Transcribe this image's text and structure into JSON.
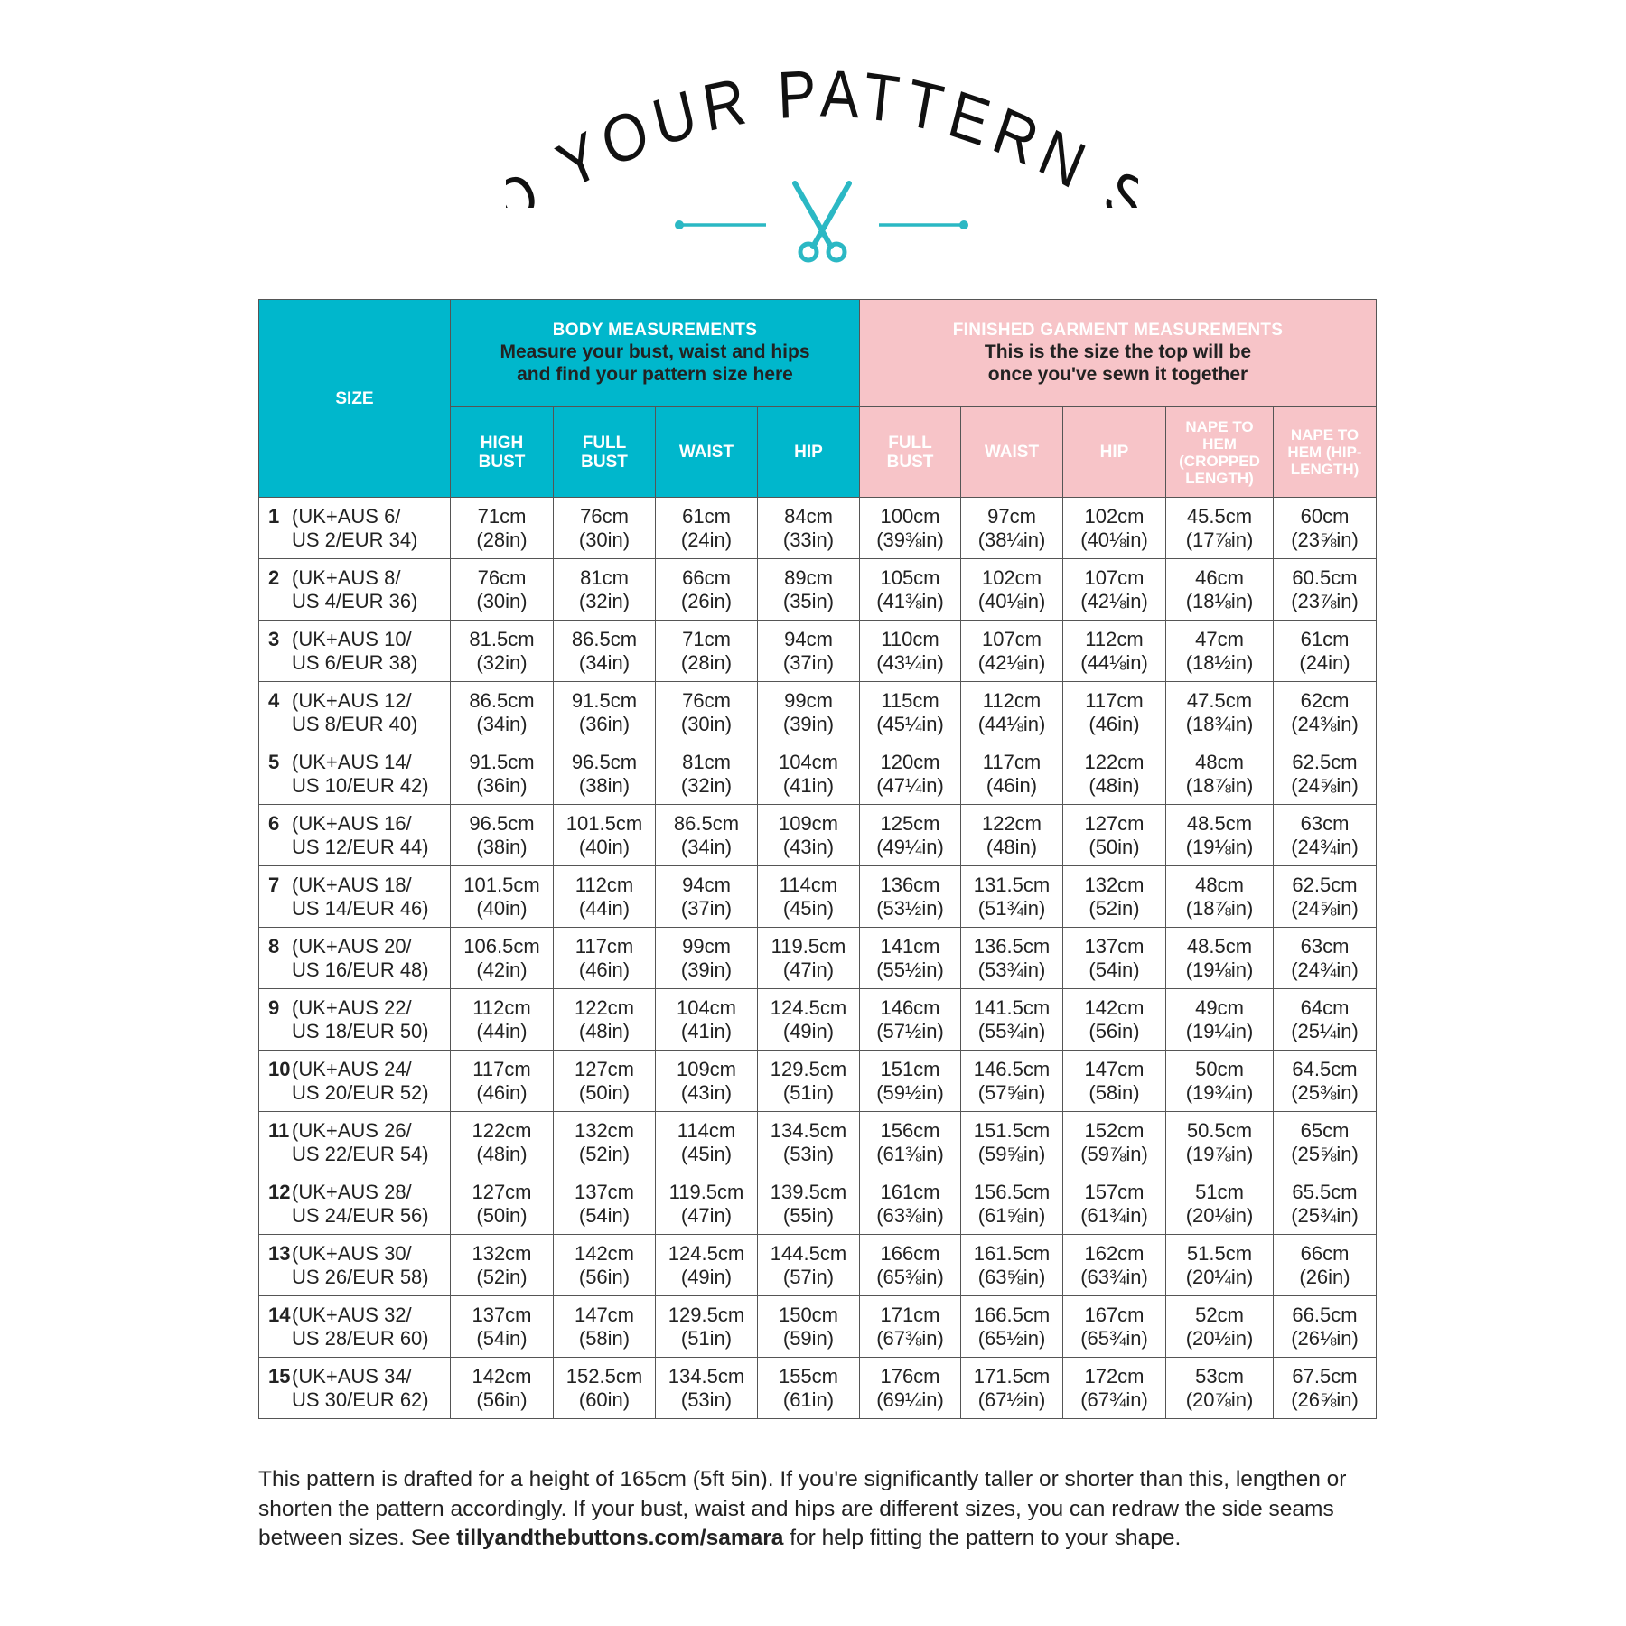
{
  "title": "FIND YOUR PATTERN SIZE",
  "colors": {
    "teal": "#00b7cc",
    "pink": "#f7c4c8",
    "scissors": "#2bb8c4"
  },
  "icons": {
    "scissors": "scissors-icon"
  },
  "header": {
    "size_label": "SIZE",
    "body": {
      "title": "BODY MEASUREMENTS",
      "subtitle": "Measure your bust, waist and hips and find your pattern size here",
      "columns": [
        "HIGH BUST",
        "FULL BUST",
        "WAIST",
        "HIP"
      ]
    },
    "finished": {
      "title": "FINISHED GARMENT MEASUREMENTS",
      "subtitle": "This is the size the top will be once you've sewn it together",
      "columns": [
        "FULL BUST",
        "WAIST",
        "HIP",
        "NAPE TO HEM (CROPPED LENGTH)",
        "NAPE TO HEM (HIP-LENGTH)"
      ]
    }
  },
  "rows": [
    {
      "num": "1",
      "line1": "(UK+AUS 6/",
      "line2": "US 2/EUR 34)",
      "cells": [
        [
          "71cm",
          "(28in)"
        ],
        [
          "76cm",
          "(30in)"
        ],
        [
          "61cm",
          "(24in)"
        ],
        [
          "84cm",
          "(33in)"
        ],
        [
          "100cm",
          "(39⅜in)"
        ],
        [
          "97cm",
          "(38¼in)"
        ],
        [
          "102cm",
          "(40⅛in)"
        ],
        [
          "45.5cm",
          "(17⅞in)"
        ],
        [
          "60cm",
          "(23⅝in)"
        ]
      ]
    },
    {
      "num": "2",
      "line1": "(UK+AUS 8/",
      "line2": "US 4/EUR 36)",
      "cells": [
        [
          "76cm",
          "(30in)"
        ],
        [
          "81cm",
          "(32in)"
        ],
        [
          "66cm",
          "(26in)"
        ],
        [
          "89cm",
          "(35in)"
        ],
        [
          "105cm",
          "(41⅜in)"
        ],
        [
          "102cm",
          "(40⅛in)"
        ],
        [
          "107cm",
          "(42⅛in)"
        ],
        [
          "46cm",
          "(18⅛in)"
        ],
        [
          "60.5cm",
          "(23⅞in)"
        ]
      ]
    },
    {
      "num": "3",
      "line1": "(UK+AUS 10/",
      "line2": "US 6/EUR 38)",
      "cells": [
        [
          "81.5cm",
          "(32in)"
        ],
        [
          "86.5cm",
          "(34in)"
        ],
        [
          "71cm",
          "(28in)"
        ],
        [
          "94cm",
          "(37in)"
        ],
        [
          "110cm",
          "(43¼in)"
        ],
        [
          "107cm",
          "(42⅛in)"
        ],
        [
          "112cm",
          "(44⅛in)"
        ],
        [
          "47cm",
          "(18½in)"
        ],
        [
          "61cm",
          "(24in)"
        ]
      ]
    },
    {
      "num": "4",
      "line1": "(UK+AUS 12/",
      "line2": "US 8/EUR 40)",
      "cells": [
        [
          "86.5cm",
          "(34in)"
        ],
        [
          "91.5cm",
          "(36in)"
        ],
        [
          "76cm",
          "(30in)"
        ],
        [
          "99cm",
          "(39in)"
        ],
        [
          "115cm",
          "(45¼in)"
        ],
        [
          "112cm",
          "(44⅛in)"
        ],
        [
          "117cm",
          "(46in)"
        ],
        [
          "47.5cm",
          "(18¾in)"
        ],
        [
          "62cm",
          "(24⅜in)"
        ]
      ]
    },
    {
      "num": "5",
      "line1": "(UK+AUS 14/",
      "line2": "US 10/EUR 42)",
      "cells": [
        [
          "91.5cm",
          "(36in)"
        ],
        [
          "96.5cm",
          "(38in)"
        ],
        [
          "81cm",
          "(32in)"
        ],
        [
          "104cm",
          "(41in)"
        ],
        [
          "120cm",
          "(47¼in)"
        ],
        [
          "117cm",
          "(46in)"
        ],
        [
          "122cm",
          "(48in)"
        ],
        [
          "48cm",
          "(18⅞in)"
        ],
        [
          "62.5cm",
          "(24⅝in)"
        ]
      ]
    },
    {
      "num": "6",
      "line1": "(UK+AUS 16/",
      "line2": "US 12/EUR 44)",
      "cells": [
        [
          "96.5cm",
          "(38in)"
        ],
        [
          "101.5cm",
          "(40in)"
        ],
        [
          "86.5cm",
          "(34in)"
        ],
        [
          "109cm",
          "(43in)"
        ],
        [
          "125cm",
          "(49¼in)"
        ],
        [
          "122cm",
          "(48in)"
        ],
        [
          "127cm",
          "(50in)"
        ],
        [
          "48.5cm",
          "(19⅛in)"
        ],
        [
          "63cm",
          "(24¾in)"
        ]
      ]
    },
    {
      "num": "7",
      "line1": "(UK+AUS 18/",
      "line2": "US 14/EUR 46)",
      "cells": [
        [
          "101.5cm",
          "(40in)"
        ],
        [
          "112cm",
          "(44in)"
        ],
        [
          "94cm",
          "(37in)"
        ],
        [
          "114cm",
          "(45in)"
        ],
        [
          "136cm",
          "(53½in)"
        ],
        [
          "131.5cm",
          "(51¾in)"
        ],
        [
          "132cm",
          "(52in)"
        ],
        [
          "48cm",
          "(18⅞in)"
        ],
        [
          "62.5cm",
          "(24⅝in)"
        ]
      ]
    },
    {
      "num": "8",
      "line1": "(UK+AUS 20/",
      "line2": "US 16/EUR 48)",
      "cells": [
        [
          "106.5cm",
          "(42in)"
        ],
        [
          "117cm",
          "(46in)"
        ],
        [
          "99cm",
          "(39in)"
        ],
        [
          "119.5cm",
          "(47in)"
        ],
        [
          "141cm",
          "(55½in)"
        ],
        [
          "136.5cm",
          "(53¾in)"
        ],
        [
          "137cm",
          "(54in)"
        ],
        [
          "48.5cm",
          "(19⅛in)"
        ],
        [
          "63cm",
          "(24¾in)"
        ]
      ]
    },
    {
      "num": "9",
      "line1": "(UK+AUS 22/",
      "line2": "US 18/EUR 50)",
      "cells": [
        [
          "112cm",
          "(44in)"
        ],
        [
          "122cm",
          "(48in)"
        ],
        [
          "104cm",
          "(41in)"
        ],
        [
          "124.5cm",
          "(49in)"
        ],
        [
          "146cm",
          "(57½in)"
        ],
        [
          "141.5cm",
          "(55¾in)"
        ],
        [
          "142cm",
          "(56in)"
        ],
        [
          "49cm",
          "(19¼in)"
        ],
        [
          "64cm",
          "(25¼in)"
        ]
      ]
    },
    {
      "num": "10",
      "line1": "(UK+AUS 24/",
      "line2": "US 20/EUR 52)",
      "cells": [
        [
          "117cm",
          "(46in)"
        ],
        [
          "127cm",
          "(50in)"
        ],
        [
          "109cm",
          "(43in)"
        ],
        [
          "129.5cm",
          "(51in)"
        ],
        [
          "151cm",
          "(59½in)"
        ],
        [
          "146.5cm",
          "(57⅝in)"
        ],
        [
          "147cm",
          "(58in)"
        ],
        [
          "50cm",
          "(19¾in)"
        ],
        [
          "64.5cm",
          "(25⅜in)"
        ]
      ]
    },
    {
      "num": "11",
      "line1": "(UK+AUS 26/",
      "line2": "US 22/EUR 54)",
      "cells": [
        [
          "122cm",
          "(48in)"
        ],
        [
          "132cm",
          "(52in)"
        ],
        [
          "114cm",
          "(45in)"
        ],
        [
          "134.5cm",
          "(53in)"
        ],
        [
          "156cm",
          "(61⅜in)"
        ],
        [
          "151.5cm",
          "(59⅝in)"
        ],
        [
          "152cm",
          "(59⅞in)"
        ],
        [
          "50.5cm",
          "(19⅞in)"
        ],
        [
          "65cm",
          "(25⅝in)"
        ]
      ]
    },
    {
      "num": "12",
      "line1": "(UK+AUS 28/",
      "line2": "US 24/EUR 56)",
      "cells": [
        [
          "127cm",
          "(50in)"
        ],
        [
          "137cm",
          "(54in)"
        ],
        [
          "119.5cm",
          "(47in)"
        ],
        [
          "139.5cm",
          "(55in)"
        ],
        [
          "161cm",
          "(63⅜in)"
        ],
        [
          "156.5cm",
          "(61⅝in)"
        ],
        [
          "157cm",
          "(61¾in)"
        ],
        [
          "51cm",
          "(20⅛in)"
        ],
        [
          "65.5cm",
          "(25¾in)"
        ]
      ]
    },
    {
      "num": "13",
      "line1": "(UK+AUS 30/",
      "line2": "US 26/EUR 58)",
      "cells": [
        [
          "132cm",
          "(52in)"
        ],
        [
          "142cm",
          "(56in)"
        ],
        [
          "124.5cm",
          "(49in)"
        ],
        [
          "144.5cm",
          "(57in)"
        ],
        [
          "166cm",
          "(65⅜in)"
        ],
        [
          "161.5cm",
          "(63⅝in)"
        ],
        [
          "162cm",
          "(63¾in)"
        ],
        [
          "51.5cm",
          "(20¼in)"
        ],
        [
          "66cm",
          "(26in)"
        ]
      ]
    },
    {
      "num": "14",
      "line1": "(UK+AUS 32/",
      "line2": "US 28/EUR 60)",
      "cells": [
        [
          "137cm",
          "(54in)"
        ],
        [
          "147cm",
          "(58in)"
        ],
        [
          "129.5cm",
          "(51in)"
        ],
        [
          "150cm",
          "(59in)"
        ],
        [
          "171cm",
          "(67⅜in)"
        ],
        [
          "166.5cm",
          "(65½in)"
        ],
        [
          "167cm",
          "(65¾in)"
        ],
        [
          "52cm",
          "(20½in)"
        ],
        [
          "66.5cm",
          "(26⅛in)"
        ]
      ]
    },
    {
      "num": "15",
      "line1": "(UK+AUS 34/",
      "line2": "US 30/EUR 62)",
      "cells": [
        [
          "142cm",
          "(56in)"
        ],
        [
          "152.5cm",
          "(60in)"
        ],
        [
          "134.5cm",
          "(53in)"
        ],
        [
          "155cm",
          "(61in)"
        ],
        [
          "176cm",
          "(69¼in)"
        ],
        [
          "171.5cm",
          "(67½in)"
        ],
        [
          "172cm",
          "(67¾in)"
        ],
        [
          "53cm",
          "(20⅞in)"
        ],
        [
          "67.5cm",
          "(26⅝in)"
        ]
      ]
    }
  ],
  "footer": {
    "text_before": "This pattern is drafted for a height of 165cm (5ft 5in). If you're significantly taller or shorter than this, lengthen or shorten the pattern accordingly. If your bust, waist and hips are different sizes, you can redraw the side seams between sizes. See ",
    "link": "tillyandthebuttons.com/samara",
    "text_after": " for help fitting the pattern to your shape."
  }
}
